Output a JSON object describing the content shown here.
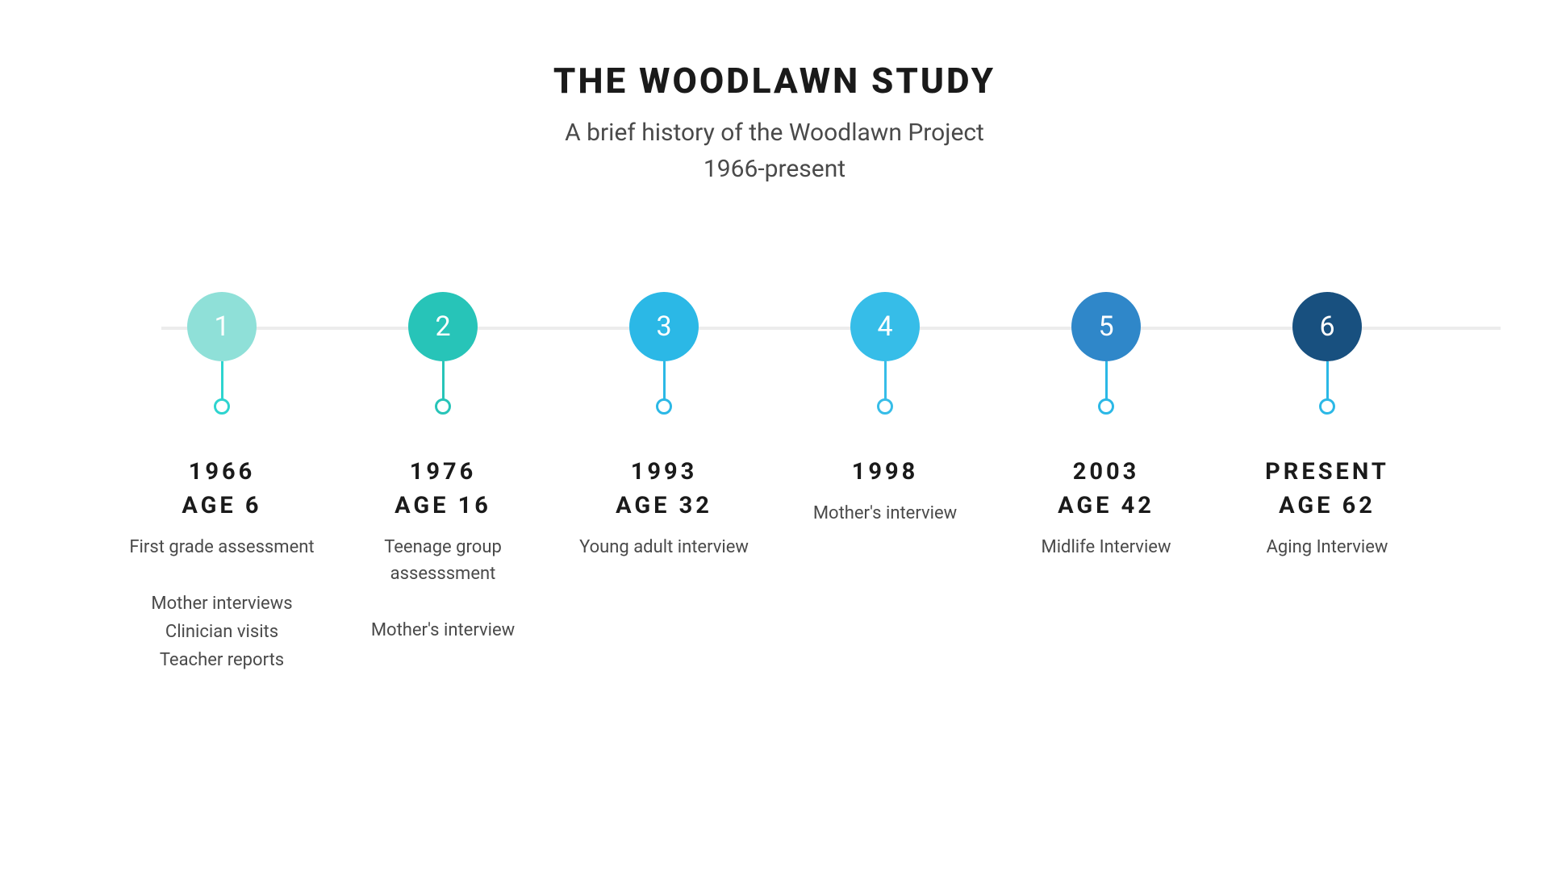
{
  "header": {
    "title": "THE WOODLAWN STUDY",
    "subtitle_line1": "A brief history of the Woodlawn Project",
    "subtitle_line2": "1966-present"
  },
  "timeline": {
    "type": "timeline",
    "line_color": "#ececec",
    "background_color": "#ffffff",
    "title_color": "#1a1a1a",
    "text_color": "#4a4a4a",
    "title_fontsize": 44,
    "subtitle_fontsize": 30,
    "year_fontsize": 29,
    "desc_fontsize": 22,
    "circle_diameter": 86,
    "ring_diameter": 20,
    "nodes": [
      {
        "num": "1",
        "circle_color": "#8fe0d8",
        "accent_color": "#2dd4cf",
        "year": "1966",
        "age": "AGE 6",
        "desc1": "First grade assessment",
        "desc2": "Mother interviews\nClinician visits\nTeacher reports"
      },
      {
        "num": "2",
        "circle_color": "#27c4b8",
        "accent_color": "#27c4b8",
        "year": "1976",
        "age": "AGE 16",
        "desc1": "Teenage group assesssment",
        "desc2": "Mother's interview"
      },
      {
        "num": "3",
        "circle_color": "#2bb8e6",
        "accent_color": "#2bb8e6",
        "year": "1993",
        "age": "AGE 32",
        "desc1": "Young adult interview",
        "desc2": ""
      },
      {
        "num": "4",
        "circle_color": "#36bde8",
        "accent_color": "#36bde8",
        "year": "1998",
        "age": "",
        "desc1": "Mother's interview",
        "desc2": ""
      },
      {
        "num": "5",
        "circle_color": "#2f87c9",
        "accent_color": "#2bb8e6",
        "year": "2003",
        "age": "AGE 42",
        "desc1": "Midlife Interview",
        "desc2": ""
      },
      {
        "num": "6",
        "circle_color": "#18507f",
        "accent_color": "#2bb8e6",
        "year": "PRESENT",
        "age": "AGE 62",
        "desc1": "Aging Interview",
        "desc2": ""
      }
    ]
  }
}
